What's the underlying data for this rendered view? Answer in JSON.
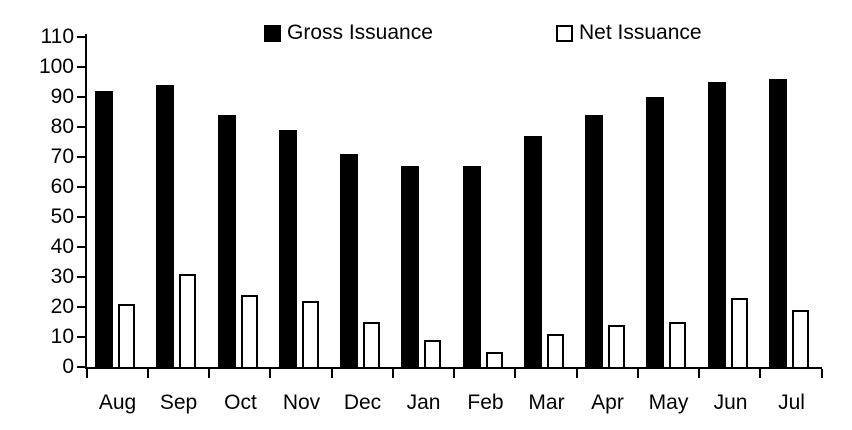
{
  "chart_data": {
    "type": "bar",
    "title": "",
    "xlabel": "",
    "ylabel": "",
    "categories": [
      "Aug",
      "Sep",
      "Oct",
      "Nov",
      "Dec",
      "Jan",
      "Feb",
      "Mar",
      "Apr",
      "May",
      "Jun",
      "Jul"
    ],
    "series": [
      {
        "name": "Gross Issuance",
        "style": "solid-black",
        "values": [
          92,
          94,
          84,
          79,
          71,
          67,
          67,
          77,
          84,
          90,
          95,
          96
        ]
      },
      {
        "name": "Net Issuance",
        "style": "white-outlined",
        "values": [
          21,
          31,
          24,
          22,
          15,
          9,
          5,
          11,
          14,
          15,
          23,
          19
        ]
      }
    ],
    "ylim": [
      0,
      110
    ],
    "yticks": [
      0,
      10,
      20,
      30,
      40,
      50,
      60,
      70,
      80,
      90,
      100,
      110
    ],
    "grid": false,
    "legend_position": "top-inside"
  },
  "colors": {
    "gross_bar": "#000000",
    "net_bar_fill": "#ffffff",
    "net_bar_border": "#000000",
    "axis": "#000000",
    "text": "#000000",
    "background": "#ffffff"
  }
}
